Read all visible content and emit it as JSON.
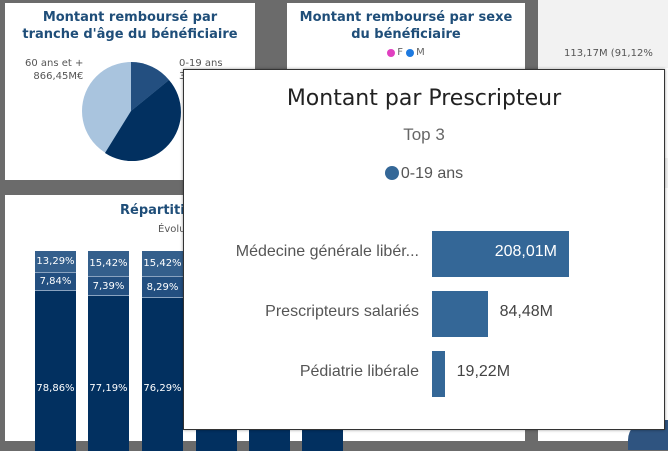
{
  "panel_age": {
    "title": "Montant remboursé par tranche d'âge du bénéficiaire",
    "label_60": "60 ans et +",
    "value_60": "866,45M€",
    "label_019": "0-19 ans",
    "value_019_partial": "3"
  },
  "panel_sexe": {
    "title": "Montant remboursé par sexe du bénéficiaire",
    "legend": [
      {
        "label": "F",
        "color": "#e040c0"
      },
      {
        "label": "M",
        "color": "#1e7ae0"
      }
    ]
  },
  "panel_right": {
    "value": "113,17M (91,12%"
  },
  "panel_repartition": {
    "title_partial": "Répartitio",
    "subtitle_partial": "Évolu",
    "bars": [
      {
        "top": "13,29%",
        "mid": "7,84%",
        "bottom": "78,86%"
      },
      {
        "top": "15,42%",
        "mid": "7,39%",
        "bottom": "77,19%"
      },
      {
        "top": "15,42%",
        "mid": "8,29%",
        "bottom": "76,29%"
      }
    ]
  },
  "tooltip": {
    "title": "Montant par Prescripteur",
    "subtitle": "Top 3",
    "legend": {
      "label": "0-19 ans",
      "color": "#346797"
    },
    "chart_data": {
      "type": "bar",
      "orientation": "horizontal",
      "categories": [
        "Médecine générale libér...",
        "Prescripteurs salariés",
        "Pédiatrie libérale"
      ],
      "values": [
        208.01,
        84.48,
        19.22
      ],
      "labels": [
        "208,01M",
        "84,48M",
        "19,22M"
      ]
    }
  }
}
